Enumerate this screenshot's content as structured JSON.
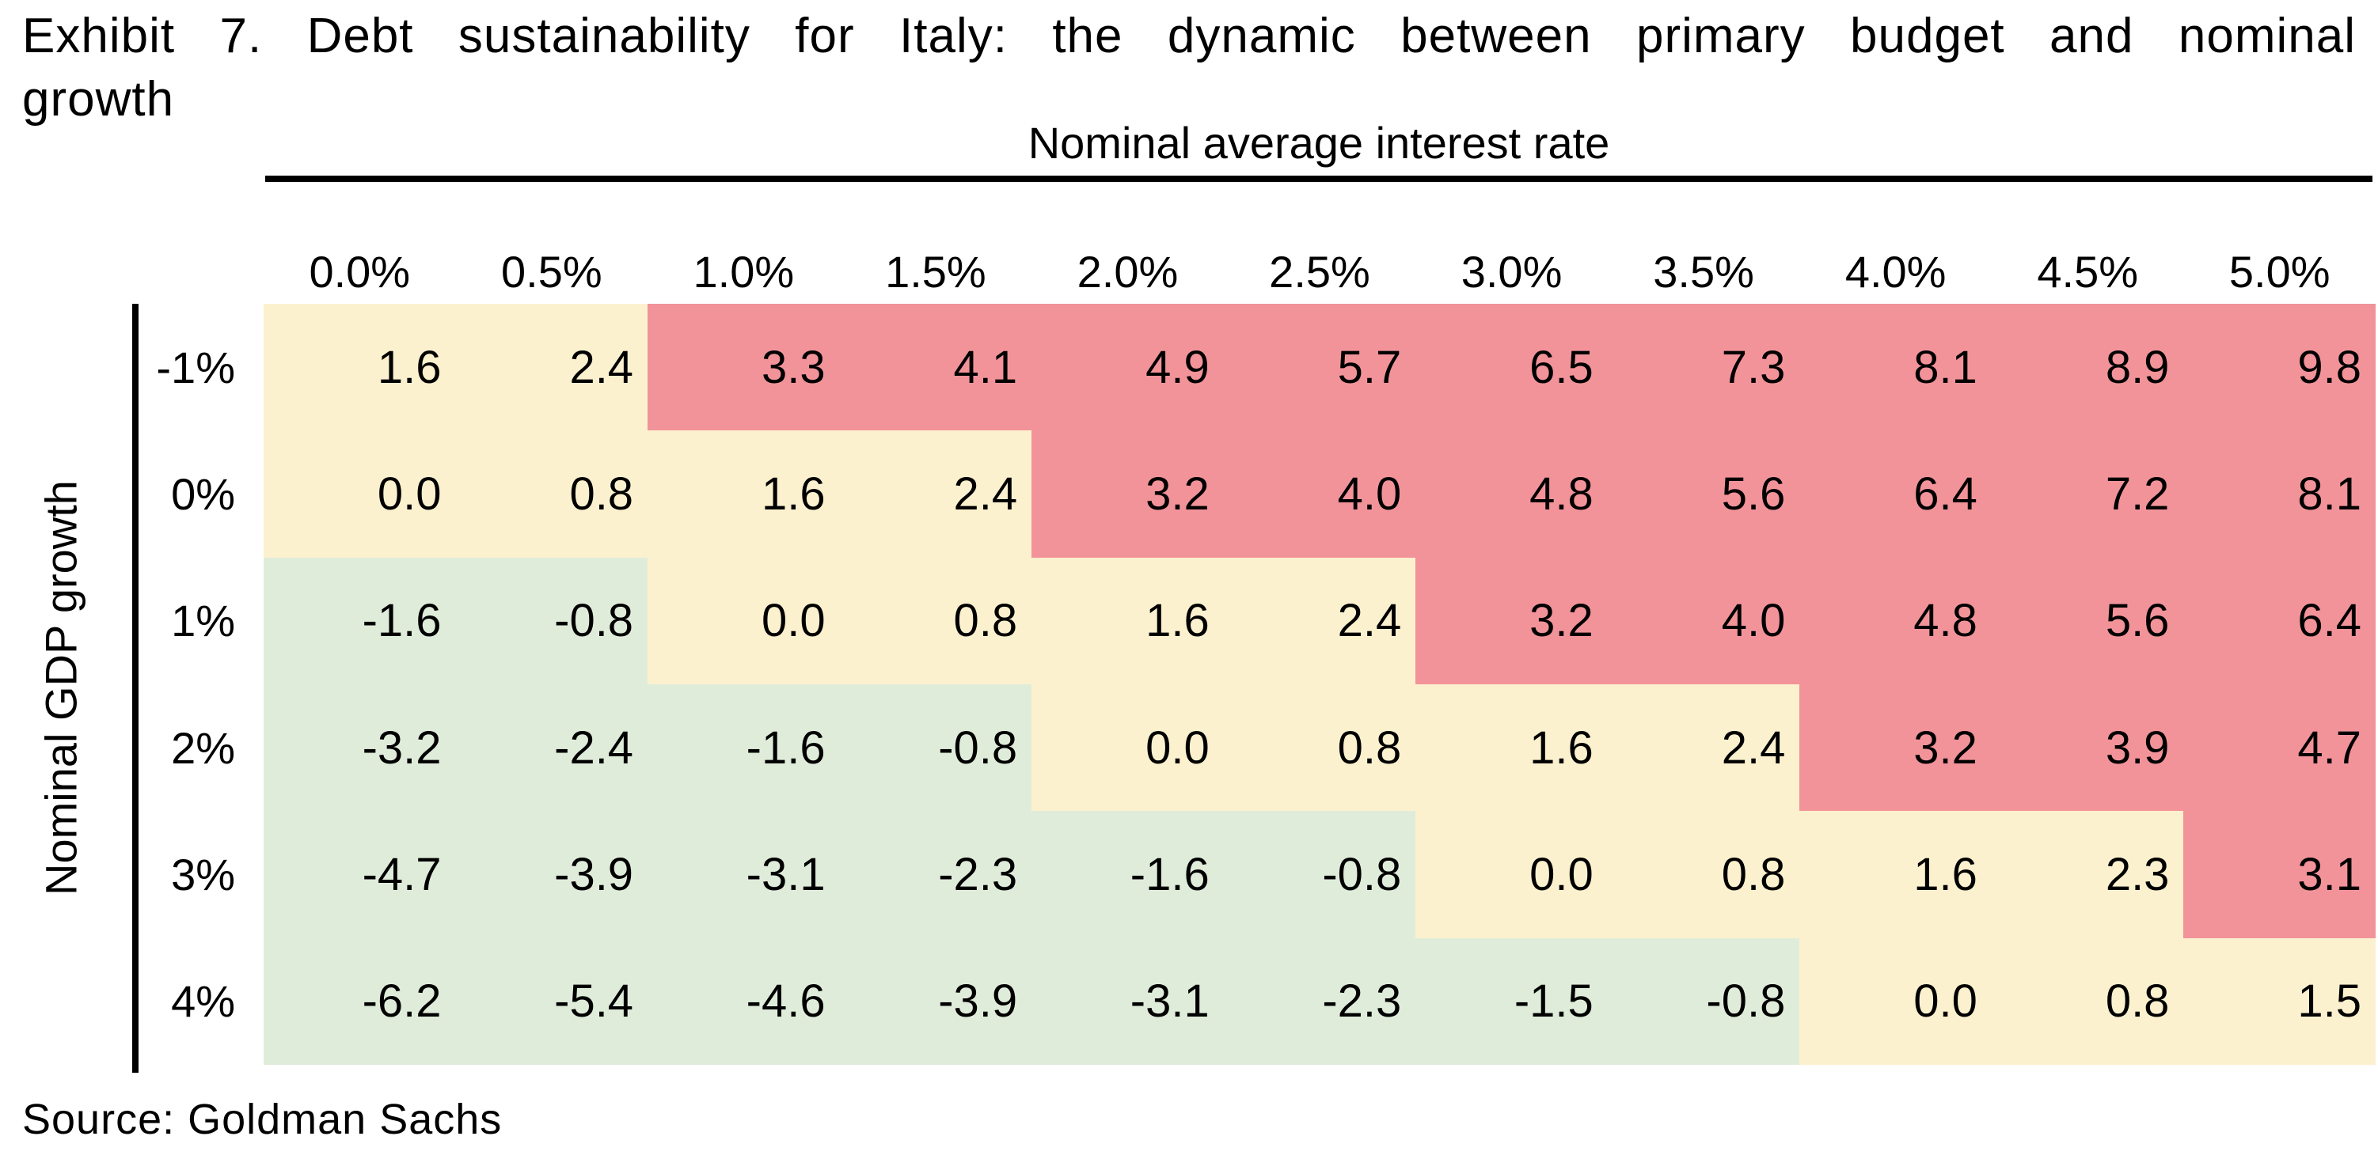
{
  "title": {
    "line1": "Exhibit 7. Debt sustainability for Italy: the dynamic between primary budget and nominal",
    "line2": "growth"
  },
  "source": "Source: Goldman Sachs",
  "chart_data": {
    "type": "heatmap",
    "title": "Exhibit 7. Debt sustainability for Italy: the dynamic between primary budget and nominal growth",
    "x_axis_label": "Nominal average interest rate",
    "y_axis_label": "Nominal GDP growth",
    "columns": [
      "0.0%",
      "0.5%",
      "1.0%",
      "1.5%",
      "2.0%",
      "2.5%",
      "3.0%",
      "3.5%",
      "4.0%",
      "4.5%",
      "5.0%"
    ],
    "rows": [
      "-1%",
      "0%",
      "1%",
      "2%",
      "3%",
      "4%"
    ],
    "values": [
      [
        1.6,
        2.4,
        3.3,
        4.1,
        4.9,
        5.7,
        6.5,
        7.3,
        8.1,
        8.9,
        9.8
      ],
      [
        0.0,
        0.8,
        1.6,
        2.4,
        3.2,
        4.0,
        4.8,
        5.6,
        6.4,
        7.2,
        8.1
      ],
      [
        -1.6,
        -0.8,
        0.0,
        0.8,
        1.6,
        2.4,
        3.2,
        4.0,
        4.8,
        5.6,
        6.4
      ],
      [
        -3.2,
        -2.4,
        -1.6,
        -0.8,
        0.0,
        0.8,
        1.6,
        2.4,
        3.2,
        3.9,
        4.7
      ],
      [
        -4.7,
        -3.9,
        -3.1,
        -2.3,
        -1.6,
        -0.8,
        0.0,
        0.8,
        1.6,
        2.3,
        3.1
      ],
      [
        -6.2,
        -5.4,
        -4.6,
        -3.9,
        -3.1,
        -2.3,
        -1.5,
        -0.8,
        0.0,
        0.8,
        1.5
      ]
    ],
    "value_decimals": 1,
    "cell_colors": [
      [
        "y",
        "y",
        "r",
        "r",
        "r",
        "r",
        "r",
        "r",
        "r",
        "r",
        "r"
      ],
      [
        "y",
        "y",
        "y",
        "y",
        "r",
        "r",
        "r",
        "r",
        "r",
        "r",
        "r"
      ],
      [
        "g",
        "g",
        "y",
        "y",
        "y",
        "y",
        "r",
        "r",
        "r",
        "r",
        "r"
      ],
      [
        "g",
        "g",
        "g",
        "g",
        "y",
        "y",
        "y",
        "y",
        "r",
        "r",
        "r"
      ],
      [
        "g",
        "g",
        "g",
        "g",
        "g",
        "g",
        "y",
        "y",
        "y",
        "y",
        "r"
      ],
      [
        "g",
        "g",
        "g",
        "g",
        "g",
        "g",
        "g",
        "g",
        "y",
        "y",
        "y"
      ]
    ],
    "color_map": {
      "g": "#DFECDA",
      "y": "#FCF1CE",
      "r": "#F2939A"
    },
    "grid": "off",
    "legend": "none"
  }
}
